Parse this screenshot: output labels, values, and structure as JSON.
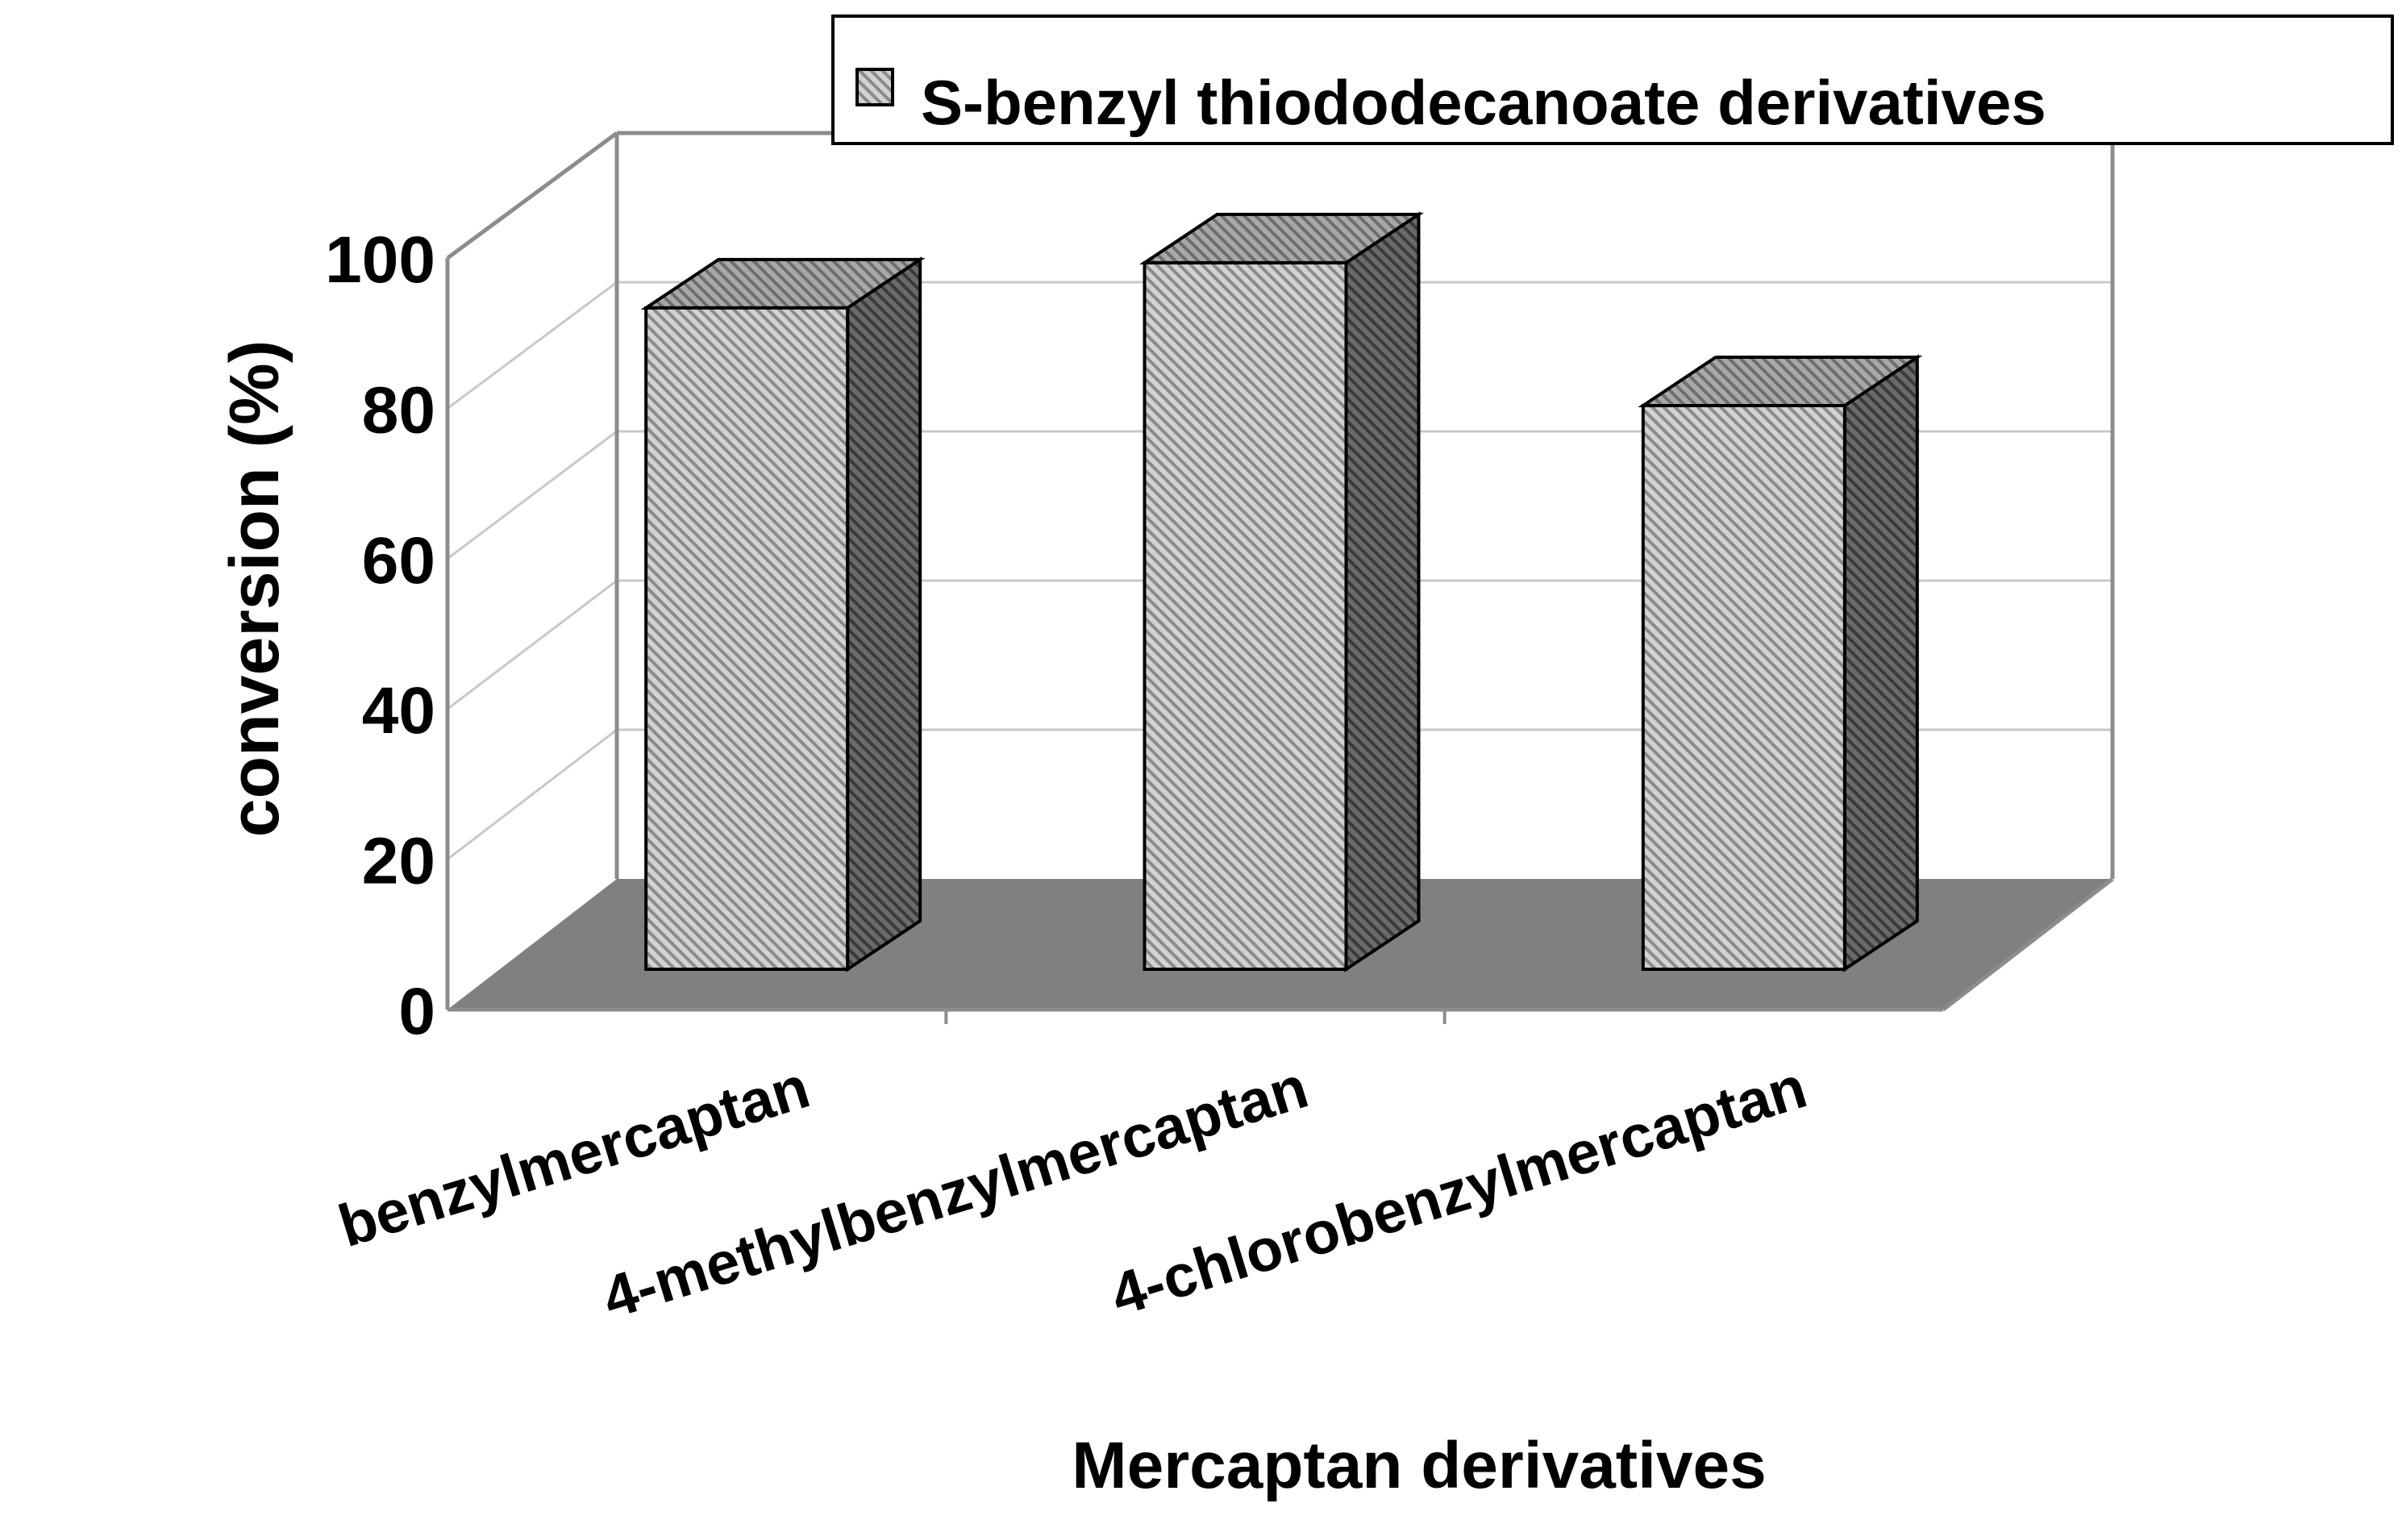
{
  "chart_data": {
    "type": "bar",
    "title": "",
    "xlabel": "Mercaptan derivatives",
    "ylabel": "conversion (%)",
    "categories": [
      "benzylmercaptan",
      "4-methylbenzylmercaptan",
      "4-chlorobenzylmercaptan"
    ],
    "series": [
      {
        "name": "S-benzyl thiododecanoate derivatives",
        "values": [
          88,
          94,
          75
        ]
      }
    ],
    "ylim": [
      0,
      100
    ],
    "yticks": [
      "0",
      "20",
      "40",
      "60",
      "80",
      "100"
    ],
    "grid": true,
    "three_d": true,
    "legend_position": "top-right",
    "colors": {
      "floor": "#808080",
      "wall_line": "#8c8c8c",
      "grid_line": "#c8c8c8",
      "bar_front_base": "#d2d2d2",
      "bar_front_stripe": "#8a8a8a",
      "bar_side_base": "#6a6a6a",
      "bar_side_stripe": "#3a3a3a",
      "bar_top_base": "#a8a8a8",
      "bar_top_stripe": "#6e6e6e",
      "outline": "#000000"
    }
  }
}
